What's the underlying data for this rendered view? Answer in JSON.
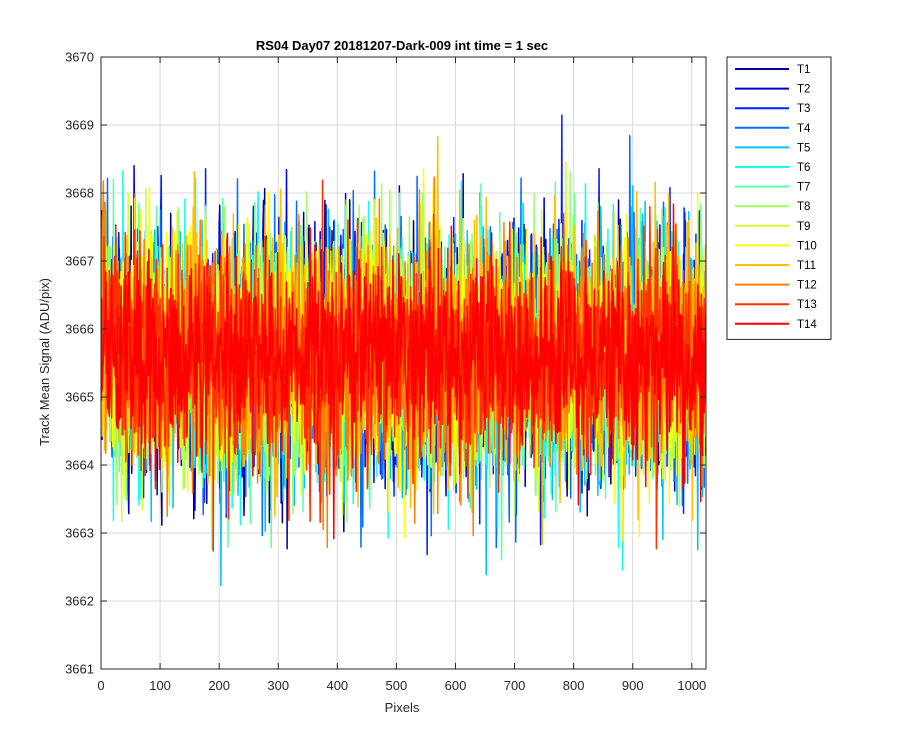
{
  "chart_data": {
    "type": "line",
    "title": "RS04 Day07 20181207-Dark-009 int time = 1 sec",
    "xlabel": "Pixels",
    "ylabel": "Track Mean Signal (ADU/pix)",
    "xlim": [
      0,
      1024
    ],
    "ylim": [
      3661,
      3670
    ],
    "xticks": [
      0,
      100,
      200,
      300,
      400,
      500,
      600,
      700,
      800,
      900,
      1000
    ],
    "yticks": [
      3661,
      3662,
      3663,
      3664,
      3665,
      3666,
      3667,
      3668,
      3669,
      3670
    ],
    "grid": true,
    "legend_position": "outside-top-right",
    "n_points_per_series": 1024,
    "series": [
      {
        "name": "T1",
        "color": "#00008f",
        "mean": 3665.6,
        "std": 0.9
      },
      {
        "name": "T2",
        "color": "#0000d0",
        "mean": 3665.6,
        "std": 0.9
      },
      {
        "name": "T3",
        "color": "#0020ff",
        "mean": 3665.6,
        "std": 0.9
      },
      {
        "name": "T4",
        "color": "#0070ff",
        "mean": 3665.6,
        "std": 0.9
      },
      {
        "name": "T5",
        "color": "#00c0ff",
        "mean": 3665.6,
        "std": 0.9
      },
      {
        "name": "T6",
        "color": "#10ffef",
        "mean": 3665.6,
        "std": 0.9
      },
      {
        "name": "T7",
        "color": "#60ffa0",
        "mean": 3665.6,
        "std": 0.9
      },
      {
        "name": "T8",
        "color": "#9fff60",
        "mean": 3665.6,
        "std": 0.9
      },
      {
        "name": "T9",
        "color": "#d0ff30",
        "mean": 3665.6,
        "std": 0.9
      },
      {
        "name": "T10",
        "color": "#ffff00",
        "mean": 3665.6,
        "std": 0.9
      },
      {
        "name": "T11",
        "color": "#ffc000",
        "mean": 3665.6,
        "std": 0.9
      },
      {
        "name": "T12",
        "color": "#ff8000",
        "mean": 3665.6,
        "std": 0.8
      },
      {
        "name": "T13",
        "color": "#ff3000",
        "mean": 3665.6,
        "std": 0.8
      },
      {
        "name": "T14",
        "color": "#ff0000",
        "mean": 3665.6,
        "std": 0.7
      }
    ]
  }
}
